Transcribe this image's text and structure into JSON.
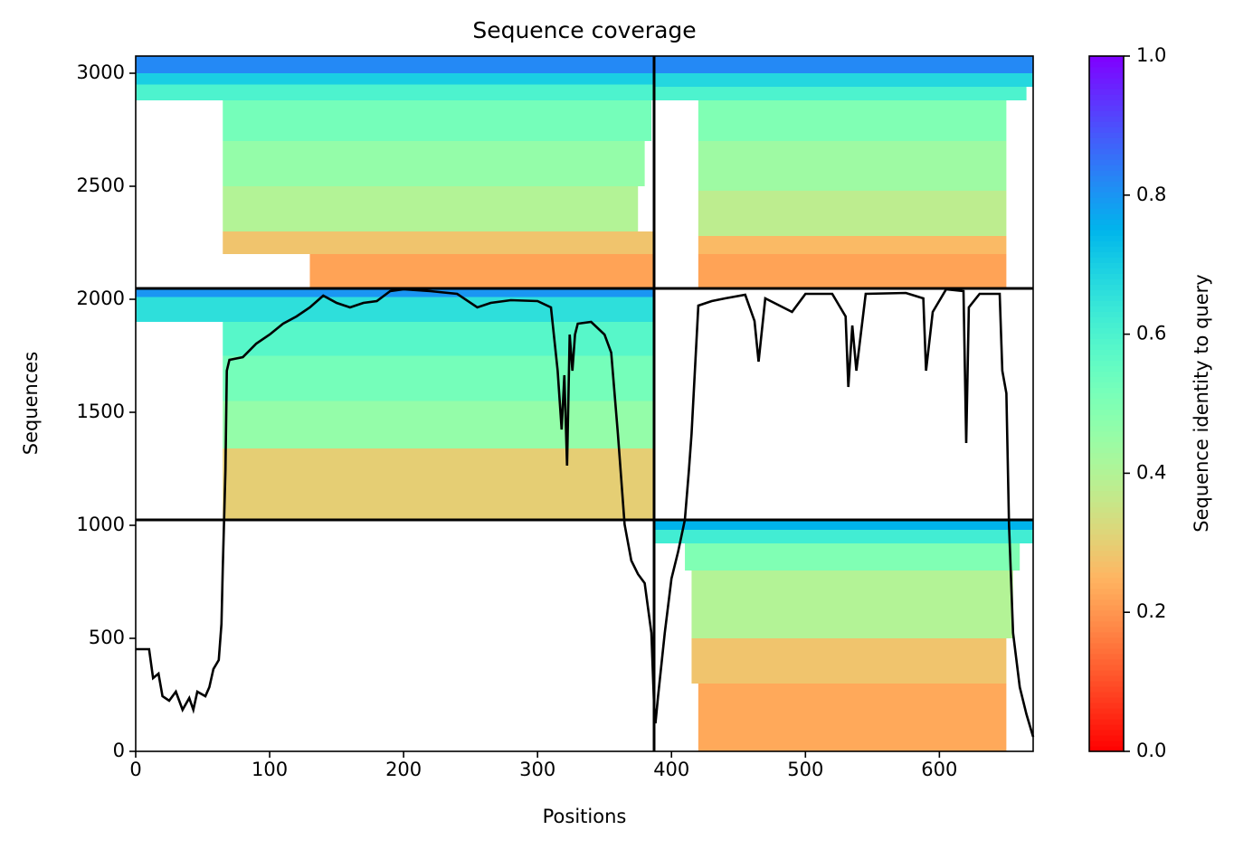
{
  "chart_data": {
    "type": "heatmap",
    "title": "Sequence coverage",
    "xlabel": "Positions",
    "ylabel": "Sequences",
    "colorbar_label": "Sequence identity to query",
    "colormap": "rainbow_r",
    "clim": [
      0,
      1
    ],
    "cticks": [
      {
        "value": 0,
        "label": "0.0"
      },
      0.2,
      0.4,
      0.6,
      0.8,
      {
        "value": 1,
        "label": "1.0"
      }
    ],
    "xlim": [
      0,
      670
    ],
    "ylim": [
      0,
      3076
    ],
    "xticks": [
      0,
      100,
      200,
      300,
      400,
      500,
      600
    ],
    "yticks": [
      0,
      500,
      1000,
      1500,
      2000,
      2500,
      3000
    ],
    "bands": [
      {
        "x": [
          0,
          387
        ],
        "y": [
          3000,
          3076
        ],
        "identity": 0.82
      },
      {
        "x": [
          0,
          387
        ],
        "y": [
          2950,
          3000
        ],
        "identity": 0.7
      },
      {
        "x": [
          0,
          387
        ],
        "y": [
          2880,
          2950
        ],
        "identity": 0.6
      },
      {
        "x": [
          65,
          385
        ],
        "y": [
          2700,
          2880
        ],
        "identity": 0.52
      },
      {
        "x": [
          65,
          380
        ],
        "y": [
          2500,
          2700
        ],
        "identity": 0.46
      },
      {
        "x": [
          65,
          375
        ],
        "y": [
          2300,
          2500
        ],
        "identity": 0.4
      },
      {
        "x": [
          65,
          387
        ],
        "y": [
          2200,
          2300
        ],
        "identity": 0.28
      },
      {
        "x": [
          130,
          387
        ],
        "y": [
          2048,
          2200
        ],
        "identity": 0.22
      },
      {
        "x": [
          387,
          670
        ],
        "y": [
          3000,
          3076
        ],
        "identity": 0.82
      },
      {
        "x": [
          387,
          670
        ],
        "y": [
          2940,
          3000
        ],
        "identity": 0.68
      },
      {
        "x": [
          387,
          665
        ],
        "y": [
          2880,
          2940
        ],
        "identity": 0.6
      },
      {
        "x": [
          420,
          650
        ],
        "y": [
          2700,
          2880
        ],
        "identity": 0.5
      },
      {
        "x": [
          420,
          650
        ],
        "y": [
          2480,
          2700
        ],
        "identity": 0.44
      },
      {
        "x": [
          420,
          650
        ],
        "y": [
          2280,
          2480
        ],
        "identity": 0.38
      },
      {
        "x": [
          420,
          650
        ],
        "y": [
          2200,
          2280
        ],
        "identity": 0.26
      },
      {
        "x": [
          420,
          650
        ],
        "y": [
          2048,
          2200
        ],
        "identity": 0.22
      },
      {
        "x": [
          0,
          387
        ],
        "y": [
          2010,
          2048
        ],
        "identity": 0.8
      },
      {
        "x": [
          0,
          387
        ],
        "y": [
          1900,
          2010
        ],
        "identity": 0.66
      },
      {
        "x": [
          65,
          387
        ],
        "y": [
          1750,
          1900
        ],
        "identity": 0.58
      },
      {
        "x": [
          65,
          387
        ],
        "y": [
          1550,
          1750
        ],
        "identity": 0.52
      },
      {
        "x": [
          65,
          387
        ],
        "y": [
          1340,
          1550
        ],
        "identity": 0.46
      },
      {
        "x": [
          65,
          387
        ],
        "y": [
          1024,
          1340
        ],
        "identity": 0.3
      },
      {
        "x": [
          387,
          670
        ],
        "y": [
          980,
          1024
        ],
        "identity": 0.75
      },
      {
        "x": [
          387,
          670
        ],
        "y": [
          920,
          980
        ],
        "identity": 0.62
      },
      {
        "x": [
          410,
          660
        ],
        "y": [
          800,
          920
        ],
        "identity": 0.5
      },
      {
        "x": [
          415,
          655
        ],
        "y": [
          500,
          800
        ],
        "identity": 0.4
      },
      {
        "x": [
          415,
          650
        ],
        "y": [
          300,
          500
        ],
        "identity": 0.28
      },
      {
        "x": [
          420,
          650
        ],
        "y": [
          0,
          300
        ],
        "identity": 0.23
      }
    ],
    "dividers": {
      "x": [
        387
      ],
      "y": [
        1024,
        2048
      ]
    },
    "coverage": {
      "x": [
        0,
        10,
        13,
        17,
        20,
        25,
        30,
        35,
        40,
        43,
        46,
        52,
        55,
        58,
        62,
        64,
        65,
        67,
        68,
        70,
        80,
        90,
        100,
        110,
        120,
        130,
        140,
        150,
        160,
        170,
        180,
        190,
        200,
        220,
        240,
        255,
        265,
        280,
        300,
        310,
        315,
        318,
        320,
        322,
        324,
        326,
        328,
        330,
        340,
        350,
        355,
        360,
        365,
        370,
        375,
        380,
        385,
        387,
        388,
        390,
        395,
        400,
        405,
        410,
        413,
        415,
        420,
        430,
        440,
        455,
        462,
        465,
        470,
        490,
        500,
        520,
        530,
        532,
        535,
        538,
        545,
        575,
        588,
        590,
        595,
        605,
        618,
        620,
        622,
        630,
        645,
        647,
        650,
        652,
        655,
        660,
        665,
        670
      ],
      "y": [
        452,
        452,
        324,
        344,
        244,
        224,
        264,
        184,
        236,
        184,
        264,
        244,
        284,
        364,
        404,
        564,
        804,
        1244,
        1684,
        1732,
        1744,
        1804,
        1844,
        1892,
        1924,
        1964,
        2016,
        1984,
        1964,
        1984,
        1992,
        2036,
        2044,
        2036,
        2024,
        1964,
        1984,
        1996,
        1992,
        1964,
        1684,
        1424,
        1664,
        1264,
        1844,
        1684,
        1844,
        1892,
        1900,
        1844,
        1764,
        1404,
        1004,
        844,
        784,
        744,
        524,
        204,
        124,
        244,
        524,
        764,
        884,
        1024,
        1244,
        1404,
        1972,
        1992,
        2004,
        2020,
        1904,
        1724,
        2004,
        1944,
        2024,
        2024,
        1924,
        1612,
        1884,
        1684,
        2024,
        2028,
        2004,
        1684,
        1944,
        2044,
        2036,
        1364,
        1964,
        2024,
        2024,
        1684,
        1584,
        1004,
        524,
        284,
        164,
        64
      ]
    }
  }
}
